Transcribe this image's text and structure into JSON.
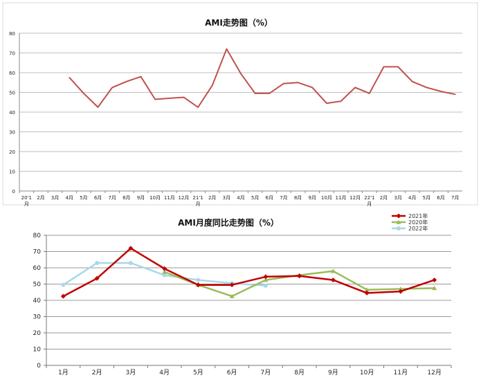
{
  "chart_data": [
    {
      "type": "line",
      "title": "AMI走势图（%）",
      "xlabel": "",
      "ylabel": "",
      "ylim": [
        0,
        80
      ],
      "yticks": [
        0,
        10,
        20,
        30,
        40,
        50,
        60,
        70,
        80
      ],
      "grid": "horizontal",
      "series_color": "#c0504d",
      "categories": [
        "20'1月",
        "2月",
        "3月",
        "4月",
        "5月",
        "6月",
        "7月",
        "8月",
        "9月",
        "10月",
        "11月",
        "12月",
        "21'1月",
        "2月",
        "3月",
        "4月",
        "5月",
        "6月",
        "7月",
        "8月",
        "9月",
        "10月",
        "11月",
        "12月",
        "22'1月",
        "2月",
        "3月",
        "4月",
        "5月",
        "6月",
        "7月"
      ],
      "series": [
        {
          "values": [
            null,
            null,
            null,
            57.5,
            49.5,
            42.5,
            52.5,
            55.5,
            58,
            46.5,
            47,
            47.5,
            42.5,
            53.5,
            72,
            59.5,
            49.5,
            49.5,
            54.5,
            55,
            52.5,
            44.5,
            45.5,
            52.5,
            49.5,
            63,
            63,
            55.5,
            52.5,
            50.5,
            49
          ]
        }
      ]
    },
    {
      "type": "line",
      "title": "AMI月度同比走势图（%）",
      "xlabel": "",
      "ylabel": "",
      "ylim": [
        0,
        80
      ],
      "yticks": [
        0,
        10,
        20,
        30,
        40,
        50,
        60,
        70,
        80
      ],
      "grid": "horizontal",
      "legend_position": "top-right",
      "categories": [
        "1月",
        "2月",
        "3月",
        "4月",
        "5月",
        "6月",
        "7月",
        "8月",
        "9月",
        "10月",
        "11月",
        "12月"
      ],
      "series": [
        {
          "name": "2021年",
          "color": "#c00000",
          "marker": "diamond",
          "values": [
            42.5,
            53.5,
            72,
            59.5,
            49.5,
            49.5,
            54.5,
            55,
            52.5,
            44.5,
            45.5,
            52.5
          ]
        },
        {
          "name": "2020年",
          "color": "#9bbb59",
          "marker": "triangle",
          "values": [
            null,
            null,
            null,
            57.5,
            49.5,
            42.5,
            52.5,
            55.5,
            58,
            46.5,
            47,
            47.5
          ]
        },
        {
          "name": "2022年",
          "color": "#a8d8e8",
          "marker": "circle",
          "values": [
            49.5,
            63,
            63,
            55.5,
            52.5,
            50.5,
            49,
            null,
            null,
            null,
            null,
            null
          ]
        }
      ]
    }
  ]
}
